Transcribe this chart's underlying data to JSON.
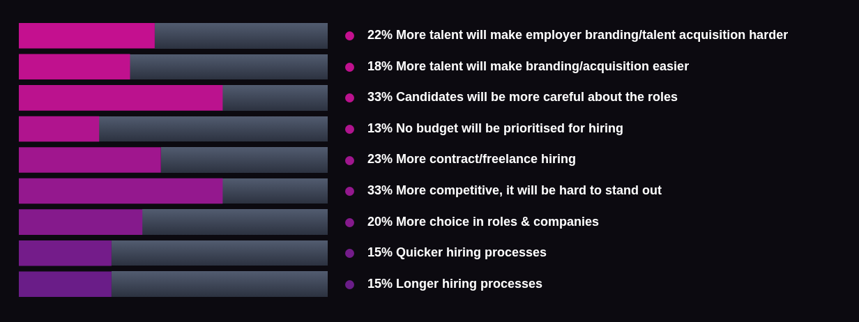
{
  "chart_data": {
    "type": "bar",
    "orientation": "horizontal",
    "categories": [
      "More talent will make employer branding/talent acquisition harder",
      "More talent will make branding/acquisition easier",
      "Candidates will be more careful about the roles",
      "No budget will be prioritised for hiring",
      "More contract/freelance hiring",
      "More competitive, it will be hard to stand out",
      "More choice in roles & companies",
      "Quicker hiring processes",
      "Longer hiring processes"
    ],
    "values": [
      22,
      18,
      33,
      13,
      23,
      33,
      20,
      15,
      15
    ],
    "value_labels": [
      "22%",
      "18%",
      "33%",
      "13%",
      "23%",
      "33%",
      "20%",
      "15%",
      "15%"
    ],
    "colors": [
      "#c4108f",
      "#c0118e",
      "#bb128e",
      "#b0148e",
      "#a0168e",
      "#94188e",
      "#851a8c",
      "#741c8a",
      "#6a1d88"
    ],
    "xlim": [
      0,
      50
    ],
    "tick_labels": "y"
  }
}
